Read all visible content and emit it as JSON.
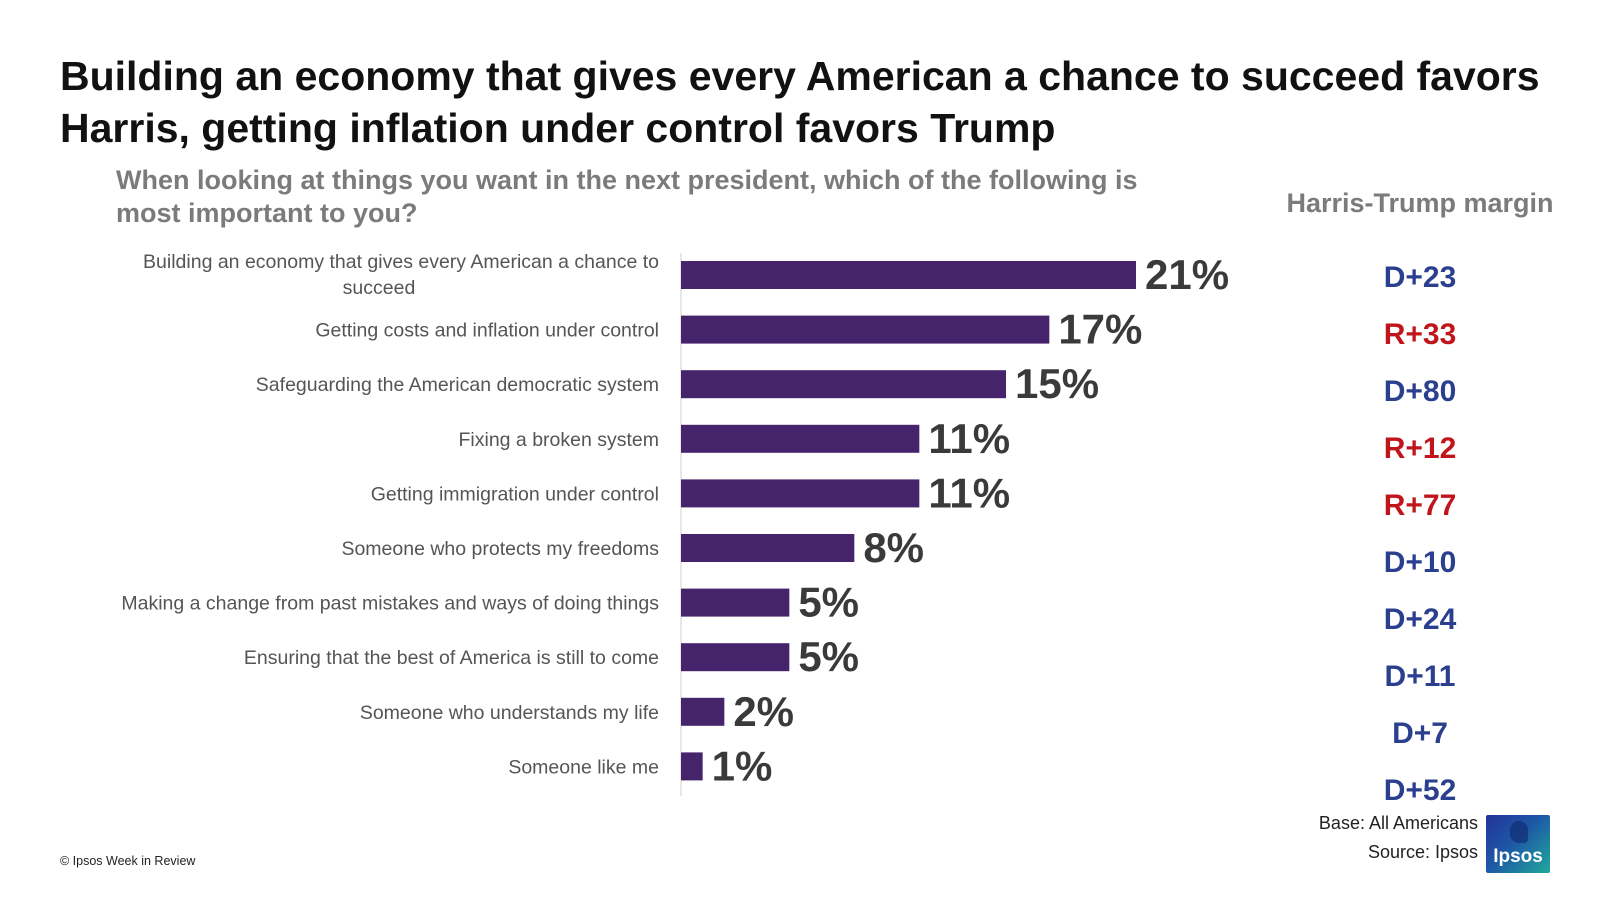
{
  "title": "Building an economy that gives every American a chance to succeed favors Harris, getting inflation under control favors Trump",
  "subtitle": "When looking at things you want in the next president, which of the following is most important to you?",
  "margin_header": "Harris-Trump margin",
  "footer": {
    "copyright": "© Ipsos Week in Review",
    "base": "Base: All Americans",
    "source": "Source: Ipsos",
    "logo_text": "Ipsos"
  },
  "colors": {
    "bar": "#45246b",
    "value_text": "#3a3a3a",
    "democrat": "#2b3f8f",
    "republican": "#c0161b",
    "axis": "#d0d0d0",
    "category_text": "#555555"
  },
  "chart_data": {
    "type": "bar",
    "orientation": "horizontal",
    "categories": [
      "Building an economy that gives every American a chance to succeed",
      "Getting costs and inflation under control",
      "Safeguarding the American democratic system",
      "Fixing a broken system",
      "Getting immigration under control",
      "Someone who protects my freedoms",
      "Making a change from past mistakes and ways of doing things",
      "Ensuring that the best of America is still to come",
      "Someone who understands my life",
      "Someone like me"
    ],
    "values": [
      21,
      17,
      15,
      11,
      11,
      8,
      5,
      5,
      2,
      1
    ],
    "value_labels": [
      "21%",
      "17%",
      "15%",
      "11%",
      "11%",
      "8%",
      "5%",
      "5%",
      "2%",
      "1%"
    ],
    "margins": [
      {
        "label": "D+23",
        "party": "D"
      },
      {
        "label": "R+33",
        "party": "R"
      },
      {
        "label": "D+80",
        "party": "D"
      },
      {
        "label": "R+12",
        "party": "R"
      },
      {
        "label": "R+77",
        "party": "R"
      },
      {
        "label": "D+10",
        "party": "D"
      },
      {
        "label": "D+24",
        "party": "D"
      },
      {
        "label": "D+11",
        "party": "D"
      },
      {
        "label": "D+7",
        "party": "D"
      },
      {
        "label": "D+52",
        "party": "D"
      }
    ],
    "xlim": [
      0,
      21
    ],
    "grid": false,
    "legend": "none"
  }
}
